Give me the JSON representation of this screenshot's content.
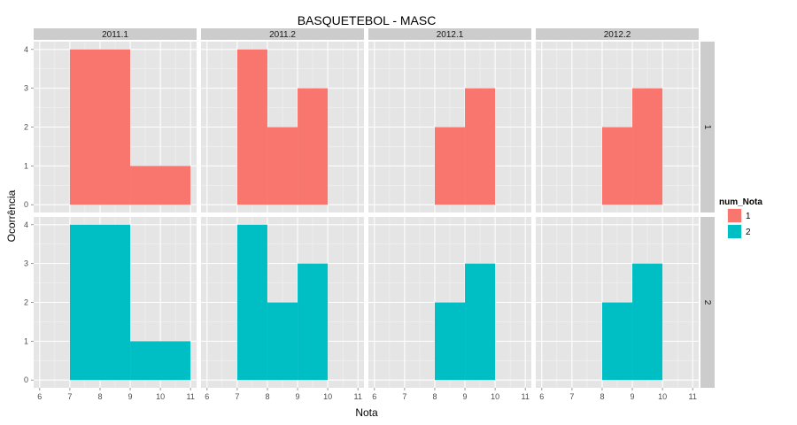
{
  "chart_data": {
    "type": "bar",
    "title": "BASQUETEBOL - MASC",
    "xlabel": "Nota",
    "ylabel": "Ocorrência",
    "xlim": [
      5.8,
      11.2
    ],
    "ylim": [
      -0.2,
      4.2
    ],
    "x_ticks": [
      "6",
      "7",
      "8",
      "9",
      "10",
      "11"
    ],
    "y_ticks": [
      "0",
      "1",
      "2",
      "3",
      "4"
    ],
    "columns": [
      "2011.1",
      "2011.2",
      "2012.1",
      "2012.2"
    ],
    "rows": [
      "1",
      "2"
    ],
    "legend": {
      "title": "num_Nota",
      "position": "right",
      "entries": [
        {
          "label": "1",
          "color": "#F8766D"
        },
        {
          "label": "2",
          "color": "#00BFC4"
        }
      ]
    },
    "panel_background": "#e5e5e5",
    "grid": true,
    "bins": {
      "2011.1": [
        {
          "x0": 7,
          "x1": 9,
          "count": 4
        },
        {
          "x0": 9,
          "x1": 11,
          "count": 1
        }
      ],
      "2011.2": [
        {
          "x0": 7,
          "x1": 8,
          "count": 4
        },
        {
          "x0": 8,
          "x1": 9,
          "count": 2
        },
        {
          "x0": 9,
          "x1": 10,
          "count": 3
        }
      ],
      "2012.1": [
        {
          "x0": 8,
          "x1": 9,
          "count": 2
        },
        {
          "x0": 9,
          "x1": 10,
          "count": 3
        }
      ],
      "2012.2": [
        {
          "x0": 8,
          "x1": 9,
          "count": 2
        },
        {
          "x0": 9,
          "x1": 10,
          "count": 3
        }
      ]
    }
  }
}
